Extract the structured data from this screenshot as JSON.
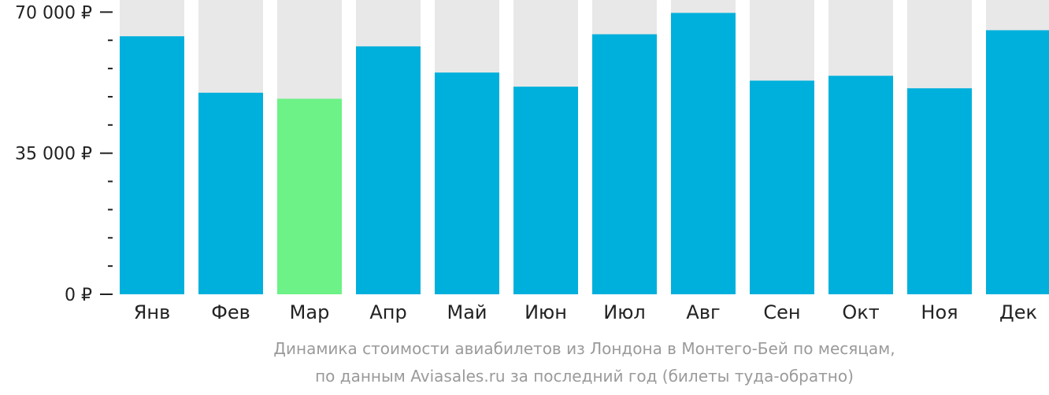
{
  "chart_data": {
    "type": "bar",
    "categories": [
      "Янв",
      "Фев",
      "Мар",
      "Апр",
      "Май",
      "Июн",
      "Июл",
      "Авг",
      "Сен",
      "Окт",
      "Ноя",
      "Дек"
    ],
    "values": [
      64000,
      50000,
      48500,
      61500,
      55000,
      51500,
      64500,
      69800,
      53000,
      54200,
      51100,
      65500
    ],
    "ylim": [
      0,
      73000
    ],
    "yticks": [
      {
        "value": 0,
        "label": "0 ₽"
      },
      {
        "value": 35000,
        "label": "35 000 ₽"
      },
      {
        "value": 70000,
        "label": "70 000 ₽"
      }
    ],
    "minor_tick_step": 7000,
    "highlight_category": "Мар",
    "colors": {
      "bar": "#00b0dc",
      "highlight": "#6cf286",
      "background": "#e8e8e8",
      "axis": "#222222"
    }
  },
  "caption": {
    "line1": "Динамика стоимости авиабилетов из Лондона в Монтего-Бей по месяцам,",
    "line2": "по данным Aviasales.ru за последний год (билеты туда-обратно)"
  }
}
